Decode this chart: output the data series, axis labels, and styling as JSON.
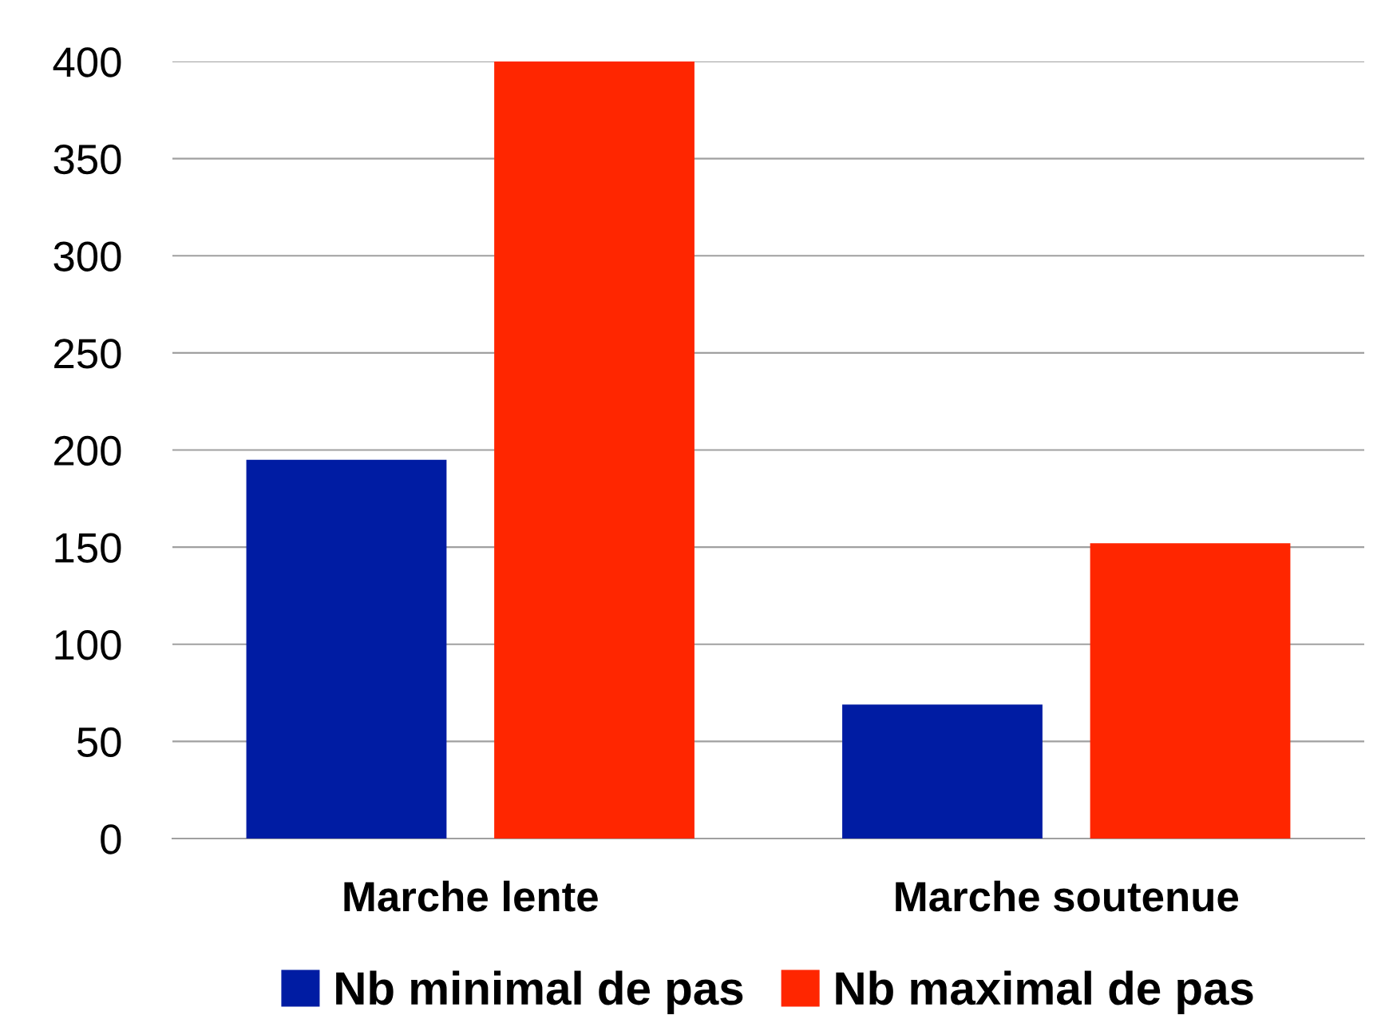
{
  "chart_data": {
    "type": "bar",
    "categories": [
      "Marche lente",
      "Marche soutenue"
    ],
    "series": [
      {
        "name": "Nb minimal de pas",
        "color": "#001ca3",
        "values": [
          195,
          69
        ]
      },
      {
        "name": "Nb maximal de pas",
        "color": "#ff2600",
        "values": [
          400,
          152
        ]
      }
    ],
    "ylim": [
      0,
      400
    ],
    "yticks": [
      0,
      50,
      100,
      150,
      200,
      250,
      300,
      350,
      400
    ],
    "grid": "y",
    "legend": "bottom"
  }
}
